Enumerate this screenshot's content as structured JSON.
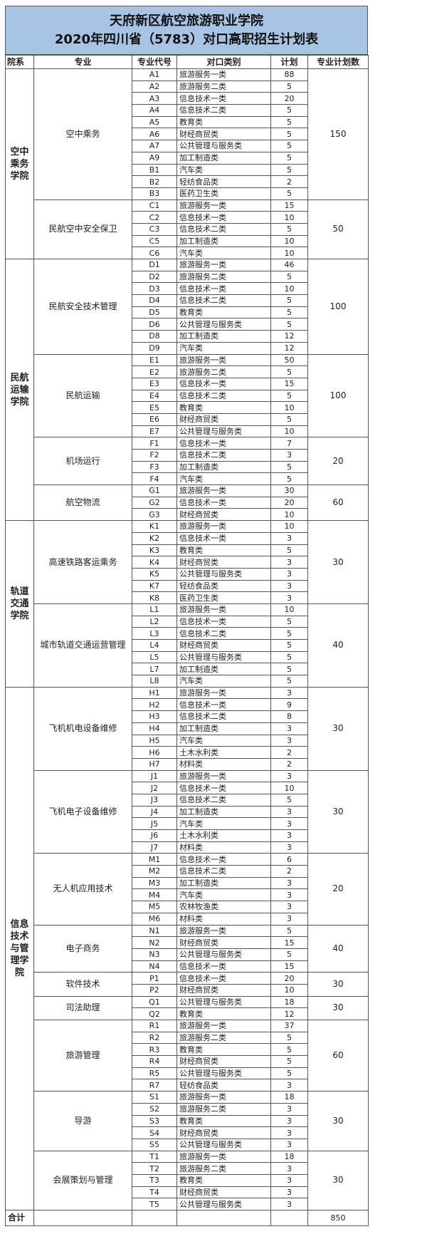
{
  "title": {
    "line1": "天府新区航空旅游职业学院",
    "line2": "2020年四川省（5783）对口高职招生计划表"
  },
  "header": {
    "college": "院系",
    "major": "专业",
    "code": "专业代号",
    "category": "对口类别",
    "plan": "计划",
    "major_total": "专业计划数"
  },
  "colors": {
    "title_band": "#a7c4e4",
    "border": "#555555"
  },
  "colleges": [
    {
      "name": "空中乘务学院",
      "majors": [
        {
          "name": "空中乘务",
          "total": "150",
          "rows": [
            [
              "A1",
              "旅游服务一类",
              "88"
            ],
            [
              "A2",
              "旅游服务二类",
              "5"
            ],
            [
              "A3",
              "信息技术一类",
              "20"
            ],
            [
              "A4",
              "信息技术二类",
              "5"
            ],
            [
              "A5",
              "教育类",
              "5"
            ],
            [
              "A6",
              "财经商贸类",
              "5"
            ],
            [
              "A7",
              "公共管理与服务类",
              "5"
            ],
            [
              "A9",
              "加工制造类",
              "5"
            ],
            [
              "B1",
              "汽车类",
              "5"
            ],
            [
              "B2",
              "轻纺食品类",
              "2"
            ],
            [
              "B3",
              "医药卫生类",
              "5"
            ]
          ]
        },
        {
          "name": "民航空中安全保卫",
          "total": "50",
          "rows": [
            [
              "C1",
              "旅游服务一类",
              "15"
            ],
            [
              "C2",
              "信息技术一类",
              "10"
            ],
            [
              "C3",
              "信息技术二类",
              "5"
            ],
            [
              "C5",
              "加工制造类",
              "10"
            ],
            [
              "C6",
              "汽车类",
              "10"
            ]
          ]
        }
      ]
    },
    {
      "name": "民航运输学院",
      "majors": [
        {
          "name": "民航安全技术管理",
          "total": "100",
          "rows": [
            [
              "D1",
              "旅游服务一类",
              "46"
            ],
            [
              "D2",
              "旅游服务二类",
              "5"
            ],
            [
              "D3",
              "信息技术一类",
              "10"
            ],
            [
              "D4",
              "信息技术二类",
              "5"
            ],
            [
              "D5",
              "教育类",
              "5"
            ],
            [
              "D6",
              "公共管理与服务类",
              "5"
            ],
            [
              "D8",
              "加工制造类",
              "12"
            ],
            [
              "D9",
              "汽车类",
              "12"
            ]
          ]
        },
        {
          "name": "民航运输",
          "total": "100",
          "rows": [
            [
              "E1",
              "旅游服务一类",
              "50"
            ],
            [
              "E2",
              "旅游服务二类",
              "5"
            ],
            [
              "E3",
              "信息技术一类",
              "15"
            ],
            [
              "E4",
              "信息技术二类",
              "5"
            ],
            [
              "E5",
              "教育类",
              "10"
            ],
            [
              "E6",
              "财经商贸类",
              "5"
            ],
            [
              "E7",
              "公共管理与服务类",
              "10"
            ]
          ]
        },
        {
          "name": "机场运行",
          "total": "20",
          "rows": [
            [
              "F1",
              "信息技术一类",
              "7"
            ],
            [
              "F2",
              "信息技术二类",
              "3"
            ],
            [
              "F3",
              "加工制造类",
              "5"
            ],
            [
              "F4",
              "汽车类",
              "5"
            ]
          ]
        },
        {
          "name": "航空物流",
          "total": "60",
          "rows": [
            [
              "G1",
              "旅游服务一类",
              "30"
            ],
            [
              "G2",
              "信息技术一类",
              "20"
            ],
            [
              "G3",
              "财经商贸类",
              "10"
            ]
          ]
        }
      ]
    },
    {
      "name": "轨道交通学院",
      "majors": [
        {
          "name": "高速铁路客运乘务",
          "total": "30",
          "rows": [
            [
              "K1",
              "旅游服务一类",
              "10"
            ],
            [
              "K2",
              "信息技术一类",
              "3"
            ],
            [
              "K3",
              "教育类",
              "5"
            ],
            [
              "K4",
              "财经商贸类",
              "3"
            ],
            [
              "K5",
              "公共管理与服务类",
              "3"
            ],
            [
              "K7",
              "轻纺食品类",
              "3"
            ],
            [
              "K8",
              "医药卫生类",
              "3"
            ]
          ]
        },
        {
          "name": "城市轨道交通运营管理",
          "total": "40",
          "rows": [
            [
              "L1",
              "旅游服务一类",
              "10"
            ],
            [
              "L2",
              "信息技术一类",
              "5"
            ],
            [
              "L3",
              "信息技术二类",
              "5"
            ],
            [
              "L4",
              "财经商贸类",
              "5"
            ],
            [
              "L5",
              "公共管理与服务类",
              "5"
            ],
            [
              "L7",
              "加工制造类",
              "5"
            ],
            [
              "L8",
              "汽车类",
              "5"
            ]
          ]
        }
      ]
    },
    {
      "name": "信息技术与管理学院",
      "majors": [
        {
          "name": "飞机机电设备维修",
          "total": "30",
          "rows": [
            [
              "H1",
              "旅游服务一类",
              "3"
            ],
            [
              "H2",
              "信息技术一类",
              "9"
            ],
            [
              "H3",
              "信息技术二类",
              "8"
            ],
            [
              "H4",
              "加工制造类",
              "3"
            ],
            [
              "H5",
              "汽车类",
              "3"
            ],
            [
              "H6",
              "土木水利类",
              "2"
            ],
            [
              "H7",
              "材料类",
              "2"
            ]
          ]
        },
        {
          "name": "飞机电子设备维修",
          "total": "30",
          "rows": [
            [
              "J1",
              "旅游服务一类",
              "3"
            ],
            [
              "J2",
              "信息技术一类",
              "10"
            ],
            [
              "J3",
              "信息技术二类",
              "5"
            ],
            [
              "J4",
              "加工制造类",
              "3"
            ],
            [
              "J5",
              "汽车类",
              "3"
            ],
            [
              "J6",
              "土木水利类",
              "3"
            ],
            [
              "J7",
              "材料类",
              "3"
            ]
          ]
        },
        {
          "name": "无人机应用技术",
          "total": "20",
          "rows": [
            [
              "M1",
              "信息技术一类",
              "6"
            ],
            [
              "M2",
              "信息技术二类",
              "2"
            ],
            [
              "M3",
              "加工制造类",
              "3"
            ],
            [
              "M4",
              "汽车类",
              "3"
            ],
            [
              "M5",
              "农林牧渔类",
              "3"
            ],
            [
              "M6",
              "材料类",
              "3"
            ]
          ]
        },
        {
          "name": "电子商务",
          "total": "40",
          "rows": [
            [
              "N1",
              "旅游服务一类",
              "5"
            ],
            [
              "N2",
              "财经商贸类",
              "15"
            ],
            [
              "N3",
              "公共管理与服务类",
              "5"
            ],
            [
              "N4",
              "信息技术一类",
              "15"
            ]
          ]
        },
        {
          "name": "软件技术",
          "total": "30",
          "rows": [
            [
              "P1",
              "信息技术一类",
              "20"
            ],
            [
              "P2",
              "财经商贸类",
              "10"
            ]
          ]
        },
        {
          "name": "司法助理",
          "total": "30",
          "rows": [
            [
              "Q1",
              "公共管理与服务类",
              "18"
            ],
            [
              "Q2",
              "教育类",
              "12"
            ]
          ]
        },
        {
          "name": "旅游管理",
          "total": "60",
          "rows": [
            [
              "R1",
              "旅游服务一类",
              "37"
            ],
            [
              "R2",
              "旅游服务二类",
              "5"
            ],
            [
              "R3",
              "教育类",
              "5"
            ],
            [
              "R4",
              "财经商贸类",
              "5"
            ],
            [
              "R5",
              "公共管理与服务类",
              "5"
            ],
            [
              "R7",
              "轻纺食品类",
              "3"
            ]
          ]
        },
        {
          "name": "导游",
          "total": "30",
          "rows": [
            [
              "S1",
              "旅游服务一类",
              "18"
            ],
            [
              "S2",
              "旅游服务二类",
              "3"
            ],
            [
              "S3",
              "教育类",
              "3"
            ],
            [
              "S4",
              "财经商贸类",
              "3"
            ],
            [
              "S5",
              "公共管理与服务类",
              "3"
            ]
          ]
        },
        {
          "name": "会展策划与管理",
          "total": "30",
          "rows": [
            [
              "T1",
              "旅游服务一类",
              "18"
            ],
            [
              "T2",
              "旅游服务二类",
              "3"
            ],
            [
              "T3",
              "教育类",
              "3"
            ],
            [
              "T4",
              "财经商贸类",
              "3"
            ],
            [
              "T5",
              "公共管理与服务类",
              "3"
            ]
          ]
        }
      ]
    }
  ],
  "footer": {
    "label": "合计",
    "total": "850"
  }
}
